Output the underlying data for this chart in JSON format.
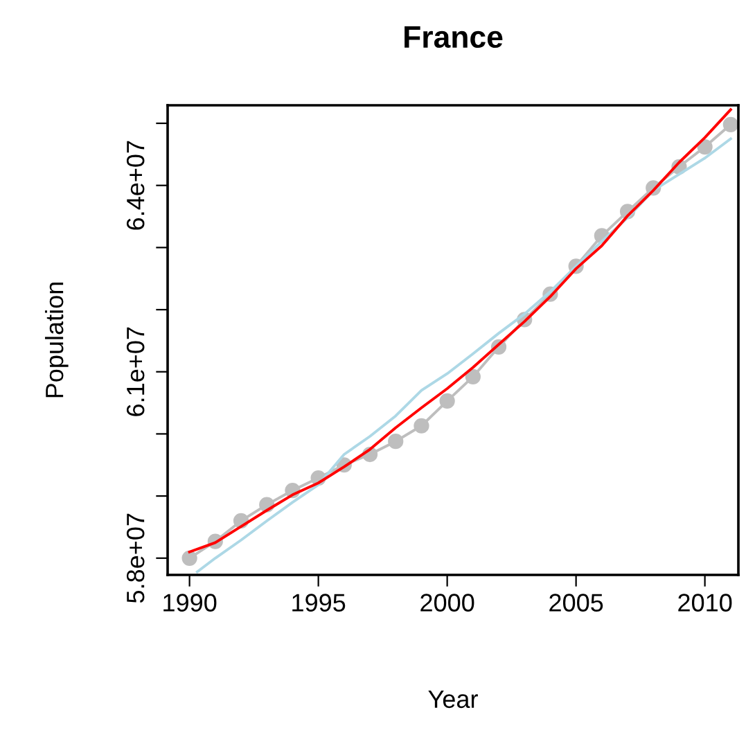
{
  "chart_data": {
    "type": "line",
    "title": "France",
    "xlabel": "Year",
    "ylabel": "Population",
    "xlim": [
      1989.15,
      2011.3
    ],
    "xticks": [
      1990,
      1995,
      2000,
      2005,
      2010
    ],
    "ylim": [
      57730000,
      65290000
    ],
    "yticks": [
      {
        "value": 58000000,
        "label": "5.8e+07"
      },
      {
        "value": 59000000,
        "label": null
      },
      {
        "value": 60000000,
        "label": null
      },
      {
        "value": 61000000,
        "label": "6.1e+07"
      },
      {
        "value": 62000000,
        "label": null
      },
      {
        "value": 63000000,
        "label": null
      },
      {
        "value": 64000000,
        "label": "6.4e+07"
      },
      {
        "value": 65000000,
        "label": null
      }
    ],
    "grid": false,
    "legend": false,
    "series": [
      {
        "color": "#bebebe",
        "marker": "circle",
        "x": [
          1990,
          1991,
          1992,
          1993,
          1994,
          1995,
          1996,
          1997,
          1998,
          1999,
          2000,
          2001,
          2002,
          2003,
          2004,
          2005,
          2006,
          2007,
          2008,
          2009,
          2010,
          2011
        ],
        "values": [
          58000000,
          58270000,
          58600000,
          58860000,
          59090000,
          59290000,
          59500000,
          59670000,
          59880000,
          60130000,
          60530000,
          60920000,
          61400000,
          61840000,
          62250000,
          62700000,
          63190000,
          63580000,
          63960000,
          64300000,
          64620000,
          64980000
        ]
      },
      {
        "color": "#add8e6",
        "x": [
          1990.3,
          1991,
          1992,
          1993,
          1994,
          1995,
          1996,
          1997,
          1998,
          1999,
          2000,
          2001,
          2002,
          2003,
          2004,
          2005,
          2006,
          2007,
          2008,
          2009,
          2010,
          2011
        ],
        "values": [
          57780000,
          58000000,
          58290000,
          58600000,
          58900000,
          59180000,
          59670000,
          59960000,
          60290000,
          60700000,
          60970000,
          61290000,
          61620000,
          61930000,
          62290000,
          62700000,
          63100000,
          63480000,
          63920000,
          64180000,
          64440000,
          64750000
        ]
      },
      {
        "color": "#ff0000",
        "x": [
          1990,
          1991,
          1992,
          1993,
          1994,
          1995,
          1996,
          1997,
          1998,
          1999,
          2000,
          2001,
          2002,
          2003,
          2004,
          2005,
          2006,
          2007,
          2008,
          2009,
          2010,
          2011
        ],
        "values": [
          58100000,
          58250000,
          58510000,
          58770000,
          59020000,
          59210000,
          59470000,
          59750000,
          60100000,
          60420000,
          60730000,
          61070000,
          61440000,
          61810000,
          62210000,
          62660000,
          63030000,
          63510000,
          63920000,
          64370000,
          64770000,
          65220000
        ]
      }
    ]
  }
}
